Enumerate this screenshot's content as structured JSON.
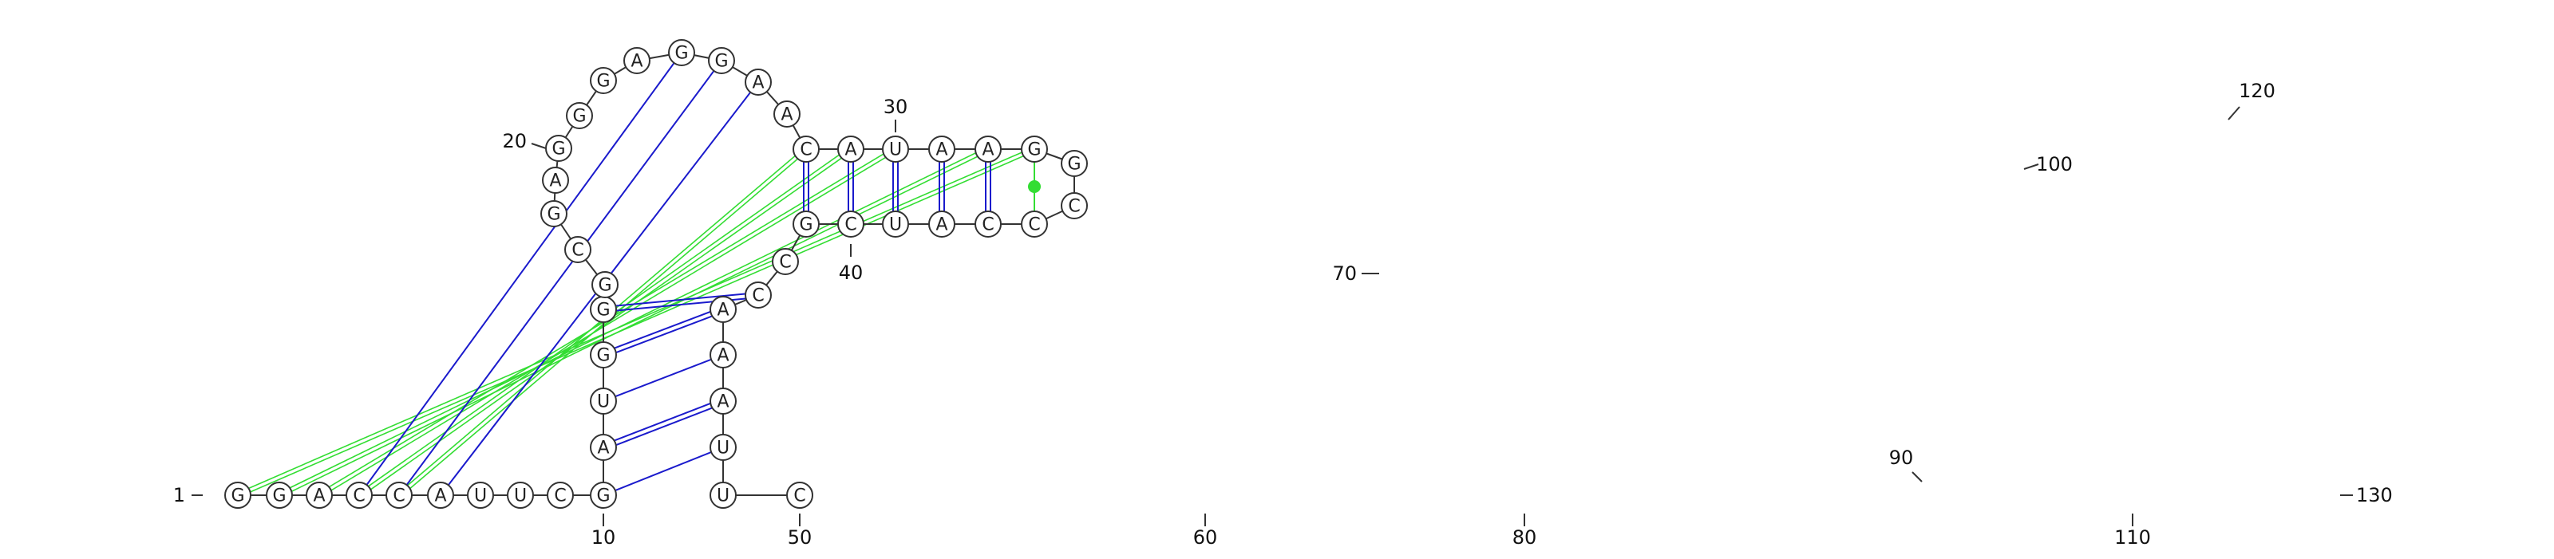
{
  "sequence": "GGACCAUUCGAUGGGCGAGGGAGGAACAUAAGGCCCAUCGCCAAAUUC",
  "colors": {
    "backbone": "#333333",
    "pair_line": "#1a1acc",
    "interaction_green": "#33dd33",
    "interaction_blue": "#1a1acc",
    "label": "#111111"
  },
  "labels": {
    "l1": "1",
    "l10": "10",
    "l20": "20",
    "l30": "30",
    "l40": "40",
    "l50": "50",
    "l60": "60",
    "l70": "70",
    "l80": "80",
    "l90": "90",
    "l100": "100",
    "l110": "110",
    "l120": "120",
    "l130": "130"
  }
}
